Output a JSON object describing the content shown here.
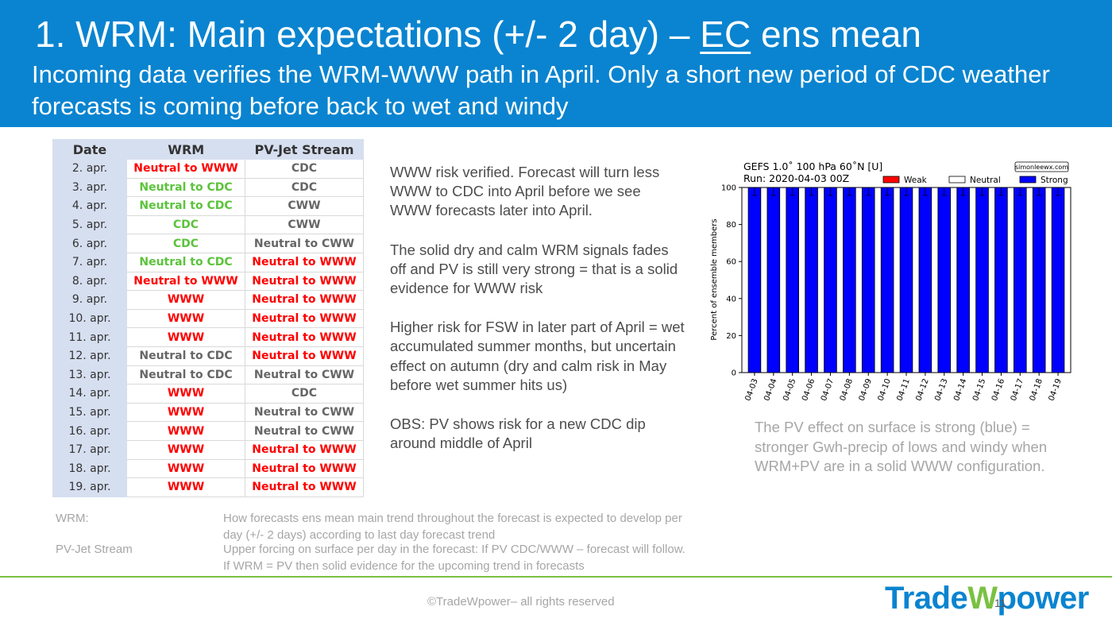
{
  "header": {
    "title_prefix": "1. WRM: Main expectations (+/- 2 day) – ",
    "title_underlined": "EC",
    "title_suffix": " ens mean",
    "subtitle": "Incoming data verifies the WRM-WWW path in April. Only a short new period of CDC weather forecasts is coming before back to wet and windy"
  },
  "table": {
    "headers": [
      "Date",
      "WRM",
      "PV-Jet Stream"
    ],
    "rows": [
      {
        "date": "2. apr.",
        "wrm": "Neutral to WWW",
        "wrm_color": "red",
        "pv": "CDC",
        "pv_color": "gray"
      },
      {
        "date": "3. apr.",
        "wrm": "Neutral to CDC",
        "wrm_color": "green",
        "pv": "CDC",
        "pv_color": "gray"
      },
      {
        "date": "4. apr.",
        "wrm": "Neutral to CDC",
        "wrm_color": "green",
        "pv": "CWW",
        "pv_color": "gray"
      },
      {
        "date": "5. apr.",
        "wrm": "CDC",
        "wrm_color": "green",
        "pv": "CWW",
        "pv_color": "gray"
      },
      {
        "date": "6. apr.",
        "wrm": "CDC",
        "wrm_color": "green",
        "pv": "Neutral to CWW",
        "pv_color": "gray"
      },
      {
        "date": "7. apr.",
        "wrm": "Neutral to CDC",
        "wrm_color": "green",
        "pv": "Neutral to WWW",
        "pv_color": "red"
      },
      {
        "date": "8. apr.",
        "wrm": "Neutral to WWW",
        "wrm_color": "red",
        "pv": "Neutral to WWW",
        "pv_color": "red"
      },
      {
        "date": "9. apr.",
        "wrm": "WWW",
        "wrm_color": "red",
        "pv": "Neutral to WWW",
        "pv_color": "red"
      },
      {
        "date": "10. apr.",
        "wrm": "WWW",
        "wrm_color": "red",
        "pv": "Neutral to WWW",
        "pv_color": "red"
      },
      {
        "date": "11. apr.",
        "wrm": "WWW",
        "wrm_color": "red",
        "pv": "Neutral to WWW",
        "pv_color": "red"
      },
      {
        "date": "12. apr.",
        "wrm": "Neutral to CDC",
        "wrm_color": "gray",
        "pv": "Neutral to WWW",
        "pv_color": "red"
      },
      {
        "date": "13. apr.",
        "wrm": "Neutral to CDC",
        "wrm_color": "gray",
        "pv": "Neutral to CWW",
        "pv_color": "gray"
      },
      {
        "date": "14. apr.",
        "wrm": "WWW",
        "wrm_color": "red",
        "pv": "CDC",
        "pv_color": "gray"
      },
      {
        "date": "15. apr.",
        "wrm": "WWW",
        "wrm_color": "red",
        "pv": "Neutral to CWW",
        "pv_color": "gray"
      },
      {
        "date": "16. apr.",
        "wrm": "WWW",
        "wrm_color": "red",
        "pv": "Neutral to CWW",
        "pv_color": "gray"
      },
      {
        "date": "17. apr.",
        "wrm": "WWW",
        "wrm_color": "red",
        "pv": "Neutral to WWW",
        "pv_color": "red"
      },
      {
        "date": "18. apr.",
        "wrm": "WWW",
        "wrm_color": "red",
        "pv": "Neutral to WWW",
        "pv_color": "red"
      },
      {
        "date": "19. apr.",
        "wrm": "WWW",
        "wrm_color": "red",
        "pv": "Neutral to WWW",
        "pv_color": "red"
      }
    ]
  },
  "colors": {
    "red": "#ff0000",
    "green": "#5cc33c",
    "gray": "#666666",
    "header_blue": "#0a84d0",
    "bar_blue": "#0000ff"
  },
  "commentary": [
    "WWW risk verified. Forecast will turn less WWW to CDC into April before we see WWW forecasts later into April.",
    "The solid dry and calm WRM signals fades off and PV is still very strong = that is a solid evidence for WWW risk",
    "Higher risk for FSW in later part of April = wet accumulated summer months, but uncertain effect on autumn (dry and calm risk in May before wet summer hits us)",
    "OBS: PV shows risk for a new CDC dip around middle of April"
  ],
  "chart_data": {
    "type": "bar",
    "title": "GEFS 1.0˚ 100 hPa 60˚N [U]",
    "subtitle": "Run: 2020-04-03 00Z",
    "watermark": "simonleewx.com",
    "ylabel": "Percent of ensemble members",
    "ylim": [
      0,
      100
    ],
    "yticks": [
      0,
      20,
      40,
      60,
      80,
      100
    ],
    "categories": [
      "04-03",
      "04-04",
      "04-05",
      "04-06",
      "04-07",
      "04-08",
      "04-09",
      "04-10",
      "04-11",
      "04-12",
      "04-13",
      "04-14",
      "04-15",
      "04-16",
      "04-17",
      "04-18",
      "04-19"
    ],
    "legend_position": "top-right",
    "series": [
      {
        "name": "Weak",
        "color": "#ff0000",
        "values": [
          0,
          0,
          0,
          0,
          0,
          0,
          0,
          0,
          0,
          0,
          0,
          0,
          0,
          0,
          0,
          0,
          0
        ]
      },
      {
        "name": "Neutral",
        "color": "#ffffff",
        "values": [
          0,
          0,
          0,
          0,
          0,
          0,
          0,
          0,
          0,
          0,
          0,
          0,
          0,
          0,
          0,
          0,
          0
        ]
      },
      {
        "name": "Strong",
        "color": "#0000ff",
        "values": [
          100,
          100,
          100,
          100,
          100,
          100,
          100,
          100,
          100,
          100,
          100,
          100,
          100,
          100,
          100,
          100,
          100
        ]
      }
    ]
  },
  "chart_caption": "The PV effect on surface is strong (blue) = stronger Gwh-precip of lows and windy when WRM+PV are in a solid WWW configuration.",
  "legend": [
    {
      "key": "WRM:",
      "value": "How forecasts ens mean main trend throughout the forecast is expected to develop per day (+/- 2 days) according to last day forecast trend"
    },
    {
      "key": "PV-Jet Stream",
      "value": "Upper forcing on surface per day in the forecast: If PV CDC/WWW – forecast will follow. If WRM = PV then solid evidence for the upcoming trend in forecasts"
    }
  ],
  "footer": {
    "copyright": "©TradeWpower– all rights reserved",
    "page_number": "11",
    "logo_part1": "Trade",
    "logo_part2": "W",
    "logo_part3": "power"
  }
}
